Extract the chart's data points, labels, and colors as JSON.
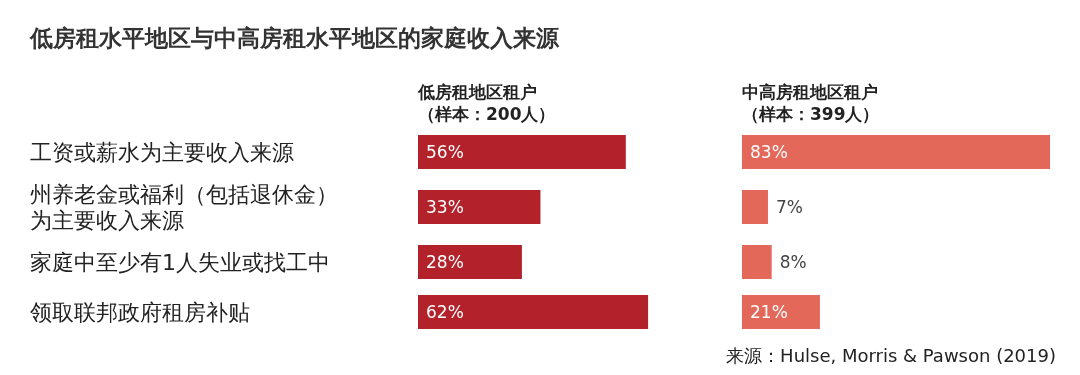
{
  "chart_data": [
    {
      "type": "bar",
      "orientation": "horizontal",
      "title": "低房租水平地区与中高房租水平地区的家庭收入来源",
      "subtitle": "低房租地区租户（样本：200人）",
      "categories": [
        "工资或薪水为主要收入来源",
        "州养老金或福利（包括退休金）为主要收入来源",
        "家庭中至少有1人失业或找工中",
        "领取联邦政府租房补贴"
      ],
      "values": [
        56,
        33,
        28,
        62
      ],
      "value_labels": [
        "56%",
        "33%",
        "28%",
        "62%"
      ],
      "color": "#b3222a"
    },
    {
      "type": "bar",
      "orientation": "horizontal",
      "subtitle": "中高房租地区租户（样本：399人）",
      "values": [
        83,
        7,
        8,
        21
      ],
      "value_labels": [
        "83%",
        "7%",
        "8%",
        "21%"
      ],
      "color": "#e4685a",
      "tick_labels": false,
      "annotations": [
        "来源：Hulse, Morris & Pawson (2019)"
      ]
    }
  ]
}
